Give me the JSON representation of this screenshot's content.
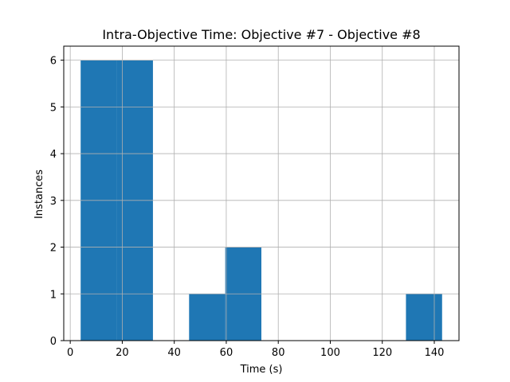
{
  "chart_data": {
    "type": "bar",
    "title": "Intra-Objective Time: Objective #7 - Objective #8",
    "xlabel": "Time (s)",
    "ylabel": "Instances",
    "xlim": [
      -2.5,
      149.5
    ],
    "ylim": [
      0,
      6.3
    ],
    "xticks": [
      0,
      20,
      40,
      60,
      80,
      100,
      120,
      140
    ],
    "yticks": [
      0,
      1,
      2,
      3,
      4,
      5,
      6
    ],
    "grid": true,
    "bar_color": "#1f77b4",
    "bins": [
      {
        "x0": 4.0,
        "x1": 17.9,
        "count": 6
      },
      {
        "x0": 17.9,
        "x1": 31.8,
        "count": 6
      },
      {
        "x0": 31.8,
        "x1": 45.7,
        "count": 0
      },
      {
        "x0": 45.7,
        "x1": 59.6,
        "count": 1
      },
      {
        "x0": 59.6,
        "x1": 73.5,
        "count": 2
      },
      {
        "x0": 73.5,
        "x1": 87.4,
        "count": 0
      },
      {
        "x0": 87.4,
        "x1": 101.3,
        "count": 0
      },
      {
        "x0": 101.3,
        "x1": 115.2,
        "count": 0
      },
      {
        "x0": 115.2,
        "x1": 129.1,
        "count": 0
      },
      {
        "x0": 129.1,
        "x1": 143.0,
        "count": 1
      }
    ]
  }
}
